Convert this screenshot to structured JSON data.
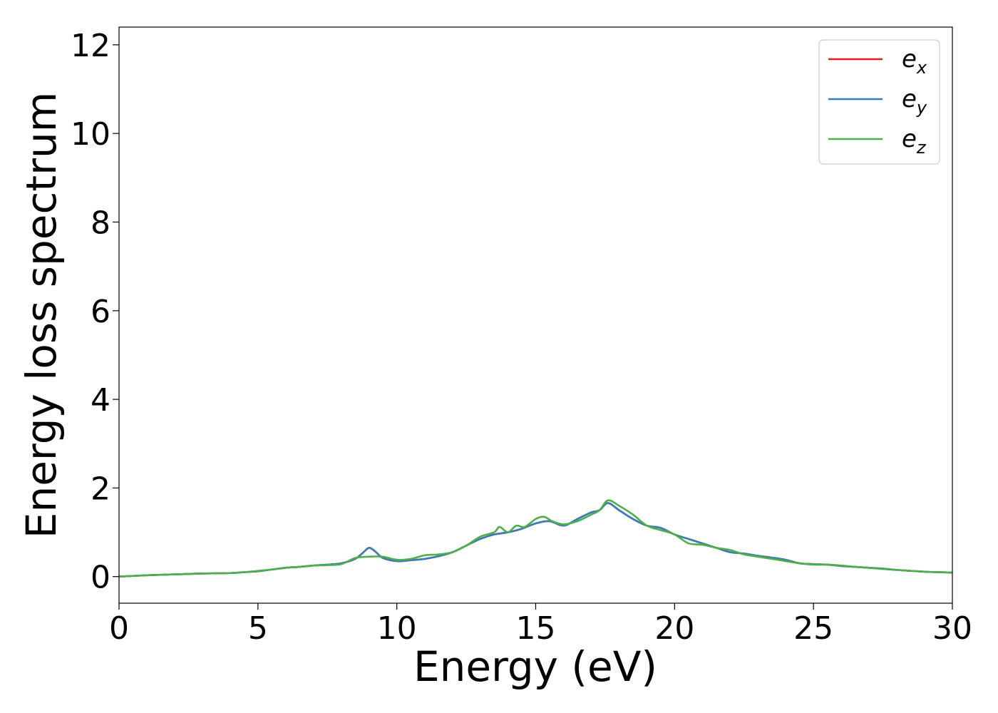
{
  "chart_data": {
    "type": "line",
    "xlabel": "Energy (eV)",
    "ylabel": "Energy loss spectrum",
    "xlim": [
      0,
      30
    ],
    "ylim": [
      -0.6,
      12.4
    ],
    "xticks": [
      0,
      5,
      10,
      15,
      20,
      25,
      30
    ],
    "yticks": [
      0,
      2,
      4,
      6,
      8,
      10,
      12
    ],
    "grid": false,
    "legend_position": "top-right",
    "series": [
      {
        "name": "e_x",
        "base": "e",
        "sub": "x",
        "color": "#e41a1c",
        "x": [
          0,
          1,
          2,
          3,
          4,
          4.5,
          5,
          5.5,
          6,
          6.5,
          7,
          7.5,
          8,
          8.5,
          8.8,
          9,
          9.2,
          9.5,
          10,
          10.5,
          11,
          11.5,
          12,
          12.5,
          13,
          13.5,
          14,
          14.5,
          15,
          15.5,
          16,
          16.5,
          17,
          17.3,
          17.6,
          18,
          18.5,
          19,
          19.5,
          20,
          20.5,
          21,
          21.5,
          22,
          22.5,
          23,
          23.5,
          24,
          24.5,
          25,
          25.5,
          26,
          26.5,
          27,
          27.5,
          28,
          28.5,
          29,
          29.5,
          30
        ],
        "y": [
          0,
          0.03,
          0.05,
          0.07,
          0.08,
          0.1,
          0.12,
          0.16,
          0.2,
          0.22,
          0.25,
          0.27,
          0.3,
          0.4,
          0.55,
          0.65,
          0.58,
          0.42,
          0.35,
          0.37,
          0.4,
          0.46,
          0.55,
          0.7,
          0.85,
          0.95,
          1.0,
          1.08,
          1.2,
          1.25,
          1.15,
          1.3,
          1.45,
          1.5,
          1.66,
          1.5,
          1.3,
          1.15,
          1.1,
          0.95,
          0.85,
          0.75,
          0.65,
          0.55,
          0.52,
          0.47,
          0.43,
          0.38,
          0.3,
          0.28,
          0.27,
          0.24,
          0.22,
          0.2,
          0.18,
          0.15,
          0.13,
          0.11,
          0.1,
          0.09
        ]
      },
      {
        "name": "e_y",
        "base": "e",
        "sub": "y",
        "color": "#377eb8",
        "x": [
          0,
          1,
          2,
          3,
          4,
          4.5,
          5,
          5.5,
          6,
          6.5,
          7,
          7.5,
          8,
          8.5,
          8.8,
          9,
          9.2,
          9.5,
          10,
          10.5,
          11,
          11.5,
          12,
          12.5,
          13,
          13.5,
          14,
          14.5,
          15,
          15.5,
          16,
          16.5,
          17,
          17.3,
          17.6,
          18,
          18.5,
          19,
          19.5,
          20,
          20.5,
          21,
          21.5,
          22,
          22.5,
          23,
          23.5,
          24,
          24.5,
          25,
          25.5,
          26,
          26.5,
          27,
          27.5,
          28,
          28.5,
          29,
          29.5,
          30
        ],
        "y": [
          0,
          0.03,
          0.05,
          0.07,
          0.08,
          0.1,
          0.12,
          0.16,
          0.2,
          0.22,
          0.25,
          0.27,
          0.3,
          0.4,
          0.55,
          0.65,
          0.58,
          0.42,
          0.35,
          0.37,
          0.4,
          0.46,
          0.55,
          0.7,
          0.85,
          0.95,
          1.0,
          1.08,
          1.2,
          1.25,
          1.15,
          1.3,
          1.45,
          1.5,
          1.66,
          1.5,
          1.3,
          1.15,
          1.1,
          0.95,
          0.85,
          0.75,
          0.65,
          0.55,
          0.52,
          0.47,
          0.43,
          0.38,
          0.3,
          0.28,
          0.27,
          0.24,
          0.22,
          0.2,
          0.18,
          0.15,
          0.13,
          0.11,
          0.1,
          0.09
        ]
      },
      {
        "name": "e_z",
        "base": "e",
        "sub": "z",
        "color": "#4daf4a",
        "x": [
          0,
          1,
          2,
          3,
          4,
          4.5,
          5,
          5.5,
          6,
          6.5,
          7,
          7.5,
          8,
          8.5,
          9,
          9.5,
          10,
          10.5,
          11,
          11.5,
          12,
          12.5,
          13,
          13.5,
          13.7,
          14,
          14.3,
          14.6,
          15,
          15.3,
          15.6,
          16,
          16.5,
          17,
          17.3,
          17.6,
          18,
          18.5,
          19,
          19.5,
          20,
          20.5,
          21,
          21.5,
          22,
          22.5,
          23,
          23.5,
          24,
          24.5,
          25,
          25.5,
          26,
          26.5,
          27,
          27.5,
          28,
          28.5,
          29,
          29.5,
          30
        ],
        "y": [
          0,
          0.03,
          0.05,
          0.07,
          0.08,
          0.1,
          0.13,
          0.16,
          0.2,
          0.22,
          0.25,
          0.26,
          0.28,
          0.42,
          0.45,
          0.45,
          0.38,
          0.4,
          0.48,
          0.5,
          0.55,
          0.7,
          0.9,
          1.0,
          1.12,
          1.0,
          1.15,
          1.12,
          1.3,
          1.35,
          1.25,
          1.18,
          1.25,
          1.4,
          1.5,
          1.72,
          1.6,
          1.4,
          1.15,
          1.05,
          0.95,
          0.75,
          0.72,
          0.65,
          0.6,
          0.5,
          0.45,
          0.4,
          0.35,
          0.3,
          0.27,
          0.27,
          0.25,
          0.22,
          0.2,
          0.17,
          0.15,
          0.13,
          0.11,
          0.1,
          0.09
        ]
      }
    ]
  }
}
